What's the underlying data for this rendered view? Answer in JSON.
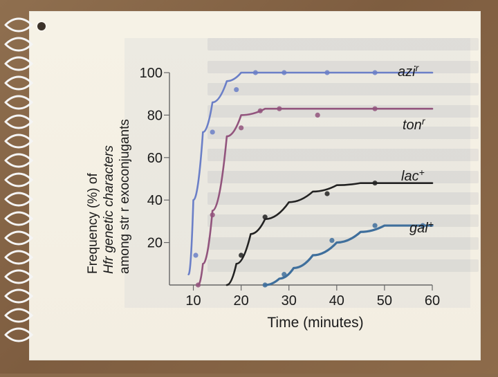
{
  "chart_data": {
    "type": "line",
    "title": "",
    "xlabel": "Time (minutes)",
    "ylabel_lines": [
      "Frequency (%) of",
      "Hfr genetic characters",
      "among str r exoconjugants"
    ],
    "xlim": [
      5,
      60
    ],
    "ylim": [
      0,
      100
    ],
    "xticks": [
      10,
      20,
      30,
      40,
      50,
      60
    ],
    "yticks": [
      20,
      40,
      60,
      80,
      100
    ],
    "series": [
      {
        "name": "azi r",
        "color": "#6b7fc7",
        "x": [
          9,
          10,
          12,
          14,
          17,
          20,
          25,
          30,
          40,
          50,
          60
        ],
        "y": [
          5,
          40,
          72,
          86,
          96,
          100,
          100,
          100,
          100,
          100,
          100
        ],
        "points": [
          {
            "x": 10.5,
            "y": 14
          },
          {
            "x": 14,
            "y": 72
          },
          {
            "x": 19,
            "y": 92
          },
          {
            "x": 23,
            "y": 100
          },
          {
            "x": 29,
            "y": 100
          },
          {
            "x": 38,
            "y": 100
          },
          {
            "x": 48,
            "y": 100
          }
        ]
      },
      {
        "name": "ton r",
        "color": "#92547d",
        "x": [
          11,
          12,
          14,
          17,
          20,
          25,
          30,
          40,
          50,
          60
        ],
        "y": [
          0,
          10,
          35,
          70,
          80,
          83,
          83,
          83,
          83,
          83
        ],
        "points": [
          {
            "x": 11,
            "y": 0
          },
          {
            "x": 14,
            "y": 33
          },
          {
            "x": 20,
            "y": 74
          },
          {
            "x": 24,
            "y": 82
          },
          {
            "x": 28,
            "y": 83
          },
          {
            "x": 36,
            "y": 80
          },
          {
            "x": 48,
            "y": 83
          }
        ]
      },
      {
        "name": "lac +",
        "color": "#222222",
        "x": [
          17,
          19,
          22,
          25,
          30,
          35,
          40,
          45,
          50,
          55,
          60
        ],
        "y": [
          0,
          10,
          24,
          31,
          39,
          44,
          47,
          48,
          48,
          48,
          48
        ],
        "points": [
          {
            "x": 20,
            "y": 14
          },
          {
            "x": 25,
            "y": 32
          },
          {
            "x": 38,
            "y": 43
          },
          {
            "x": 48,
            "y": 48
          }
        ]
      },
      {
        "name": "gal +",
        "color": "#3f6f9c",
        "x": [
          25,
          28,
          31,
          35,
          40,
          45,
          50,
          55,
          60
        ],
        "y": [
          0,
          3,
          8,
          14,
          20,
          25,
          28,
          28,
          28
        ],
        "points": [
          {
            "x": 25,
            "y": 0
          },
          {
            "x": 29,
            "y": 5
          },
          {
            "x": 39,
            "y": 21
          },
          {
            "x": 48,
            "y": 28
          },
          {
            "x": 58,
            "y": 28
          }
        ]
      }
    ],
    "labels": [
      {
        "text": "azi",
        "sup": "r",
        "series": "azi r"
      },
      {
        "text": "ton",
        "sup": "r",
        "series": "ton r"
      },
      {
        "text": "lac",
        "sup": "+",
        "series": "lac +"
      },
      {
        "text": "gal",
        "sup": "+",
        "series": "gal +"
      }
    ],
    "grid": false,
    "legend": "inline"
  }
}
